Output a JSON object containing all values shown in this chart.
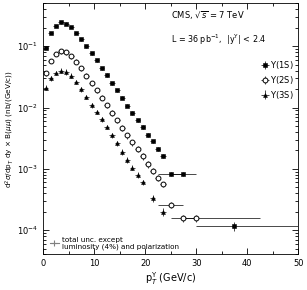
{
  "xlabel": "p$_{T}^{\\Upsilon}$ (GeV/c)",
  "ylabel": "d$^{2}\\sigma$/dp$_{T}$ dy $\\times$ B($\\mu\\mu$) (nb/(GeV/c))",
  "xlim": [
    0,
    50
  ],
  "ylim": [
    4e-05,
    0.5
  ],
  "Y1S_pt": [
    0.5,
    1.5,
    2.5,
    3.5,
    4.5,
    5.5,
    6.5,
    7.5,
    8.5,
    9.5,
    10.5,
    11.5,
    12.5,
    13.5,
    14.5,
    15.5,
    16.5,
    17.5,
    18.5,
    19.5,
    20.5,
    21.5,
    22.5,
    23.5,
    25.0,
    27.5,
    37.5
  ],
  "Y1S_val": [
    0.095,
    0.165,
    0.215,
    0.245,
    0.235,
    0.205,
    0.165,
    0.13,
    0.1,
    0.077,
    0.059,
    0.044,
    0.034,
    0.025,
    0.019,
    0.0145,
    0.0108,
    0.0082,
    0.0062,
    0.0048,
    0.0036,
    0.0028,
    0.0021,
    0.0016,
    0.00083,
    0.00083,
    0.000115
  ],
  "Y1S_xerr_lo": [
    0.5,
    0.5,
    0.5,
    0.5,
    0.5,
    0.5,
    0.5,
    0.5,
    0.5,
    0.5,
    0.5,
    0.5,
    0.5,
    0.5,
    0.5,
    0.5,
    0.5,
    0.5,
    0.5,
    0.5,
    0.5,
    0.5,
    0.5,
    0.5,
    2.5,
    2.5,
    7.5
  ],
  "Y1S_xerr_hi": [
    0.5,
    0.5,
    0.5,
    0.5,
    0.5,
    0.5,
    0.5,
    0.5,
    0.5,
    0.5,
    0.5,
    0.5,
    0.5,
    0.5,
    0.5,
    0.5,
    0.5,
    0.5,
    0.5,
    0.5,
    0.5,
    0.5,
    0.5,
    0.5,
    2.5,
    2.5,
    12.5
  ],
  "Y1S_yerr": [
    0.006,
    0.009,
    0.01,
    0.01,
    0.01,
    0.009,
    0.007,
    0.006,
    0.005,
    0.004,
    0.003,
    0.0025,
    0.002,
    0.0015,
    0.0012,
    0.0009,
    0.0007,
    0.0005,
    0.0004,
    0.0003,
    0.00025,
    0.0002,
    0.00015,
    0.00012,
    6e-05,
    6e-05,
    2e-05
  ],
  "Y2S_pt": [
    0.5,
    1.5,
    2.5,
    3.5,
    4.5,
    5.5,
    6.5,
    7.5,
    8.5,
    9.5,
    10.5,
    11.5,
    12.5,
    13.5,
    14.5,
    15.5,
    16.5,
    17.5,
    18.5,
    19.5,
    20.5,
    21.5,
    22.5,
    23.5,
    25.0,
    27.5,
    30.0
  ],
  "Y2S_val": [
    0.036,
    0.058,
    0.075,
    0.083,
    0.08,
    0.069,
    0.056,
    0.044,
    0.033,
    0.025,
    0.019,
    0.0145,
    0.011,
    0.0082,
    0.0062,
    0.0047,
    0.0035,
    0.0027,
    0.0021,
    0.0016,
    0.0012,
    0.00093,
    0.00072,
    0.00056,
    0.00026,
    0.000155,
    0.000155
  ],
  "Y2S_xerr_lo": [
    0.5,
    0.5,
    0.5,
    0.5,
    0.5,
    0.5,
    0.5,
    0.5,
    0.5,
    0.5,
    0.5,
    0.5,
    0.5,
    0.5,
    0.5,
    0.5,
    0.5,
    0.5,
    0.5,
    0.5,
    0.5,
    0.5,
    0.5,
    0.5,
    2.5,
    2.5,
    2.5
  ],
  "Y2S_xerr_hi": [
    0.5,
    0.5,
    0.5,
    0.5,
    0.5,
    0.5,
    0.5,
    0.5,
    0.5,
    0.5,
    0.5,
    0.5,
    0.5,
    0.5,
    0.5,
    0.5,
    0.5,
    0.5,
    0.5,
    0.5,
    0.5,
    0.5,
    0.5,
    0.5,
    2.5,
    2.5,
    12.5
  ],
  "Y2S_yerr": [
    0.003,
    0.005,
    0.006,
    0.007,
    0.007,
    0.006,
    0.005,
    0.004,
    0.003,
    0.0022,
    0.0017,
    0.0013,
    0.001,
    0.0008,
    0.0006,
    0.0005,
    0.0004,
    0.0003,
    0.00025,
    0.0002,
    0.00015,
    0.0001,
    8e-05,
    6e-05,
    3e-05,
    2e-05,
    2e-05
  ],
  "Y3S_pt": [
    0.5,
    1.5,
    2.5,
    3.5,
    4.5,
    5.5,
    6.5,
    7.5,
    8.5,
    9.5,
    10.5,
    11.5,
    12.5,
    13.5,
    14.5,
    15.5,
    16.5,
    17.5,
    18.5,
    19.5,
    21.5,
    23.5
  ],
  "Y3S_val": [
    0.021,
    0.03,
    0.037,
    0.04,
    0.038,
    0.033,
    0.026,
    0.02,
    0.015,
    0.011,
    0.0085,
    0.0064,
    0.0048,
    0.0035,
    0.0026,
    0.0019,
    0.0014,
    0.00105,
    0.0008,
    0.0006,
    0.00033,
    0.0002
  ],
  "Y3S_xerr_lo": [
    0.5,
    0.5,
    0.5,
    0.5,
    0.5,
    0.5,
    0.5,
    0.5,
    0.5,
    0.5,
    0.5,
    0.5,
    0.5,
    0.5,
    0.5,
    0.5,
    0.5,
    0.5,
    0.5,
    0.5,
    0.5,
    0.5
  ],
  "Y3S_xerr_hi": [
    0.5,
    0.5,
    0.5,
    0.5,
    0.5,
    0.5,
    0.5,
    0.5,
    0.5,
    0.5,
    0.5,
    0.5,
    0.5,
    0.5,
    0.5,
    0.5,
    0.5,
    0.5,
    0.5,
    0.5,
    0.5,
    0.5
  ],
  "Y3S_yerr": [
    0.002,
    0.003,
    0.003,
    0.004,
    0.004,
    0.003,
    0.002,
    0.0018,
    0.0013,
    0.001,
    0.0007,
    0.0005,
    0.0004,
    0.0003,
    0.00025,
    0.0002,
    0.00015,
    0.0001,
    8e-05,
    6e-05,
    4e-05,
    3e-05
  ],
  "background_color": "white"
}
